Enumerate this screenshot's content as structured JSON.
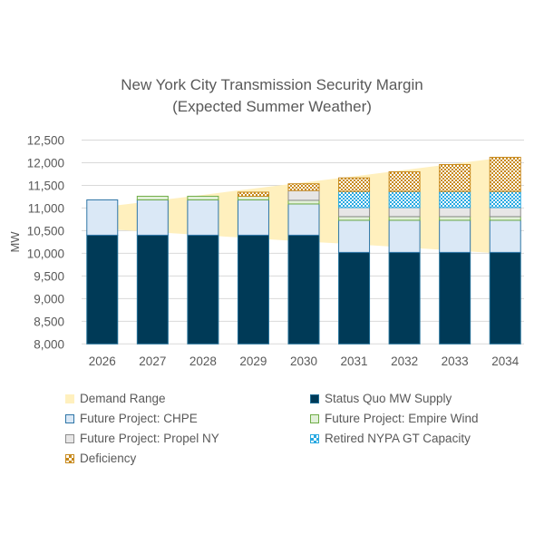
{
  "chart_data": {
    "type": "bar",
    "stacked": true,
    "title": "New York City Transmission Security Margin",
    "subtitle": "(Expected Summer Weather)",
    "xlabel": "",
    "ylabel": "MW",
    "ylim": [
      8000,
      12500
    ],
    "yticks": [
      8000,
      8500,
      9000,
      9500,
      10000,
      10500,
      11000,
      11500,
      12000,
      12500
    ],
    "ytick_labels": [
      "8,000",
      "8,500",
      "9,000",
      "9,500",
      "10,000",
      "10,500",
      "11,000",
      "11,500",
      "12,000",
      "12,500"
    ],
    "grid": true,
    "legend_position": "bottom",
    "categories": [
      "2026",
      "2027",
      "2028",
      "2029",
      "2030",
      "2031",
      "2032",
      "2033",
      "2034"
    ],
    "demand_range": {
      "name": "Demand Range",
      "color": "#FFF0BE",
      "lower": [
        10540,
        10470,
        10400,
        10330,
        10260,
        10200,
        10130,
        10060,
        9990
      ],
      "upper": [
        11020,
        11155,
        11290,
        11430,
        11565,
        11700,
        11840,
        11980,
        12120
      ]
    },
    "series": [
      {
        "name": "Status Quo MW Supply",
        "key": "sq",
        "fill": "#003A57",
        "stroke": "#1F6E96",
        "pattern": "solid",
        "values": [
          10400,
          10400,
          10400,
          10400,
          10400,
          10020,
          10020,
          10020,
          10020
        ]
      },
      {
        "name": "Future Project: CHPE",
        "key": "chpe",
        "fill": "#DAE8F6",
        "stroke": "#2E75A6",
        "pattern": "solid",
        "values": [
          780,
          780,
          780,
          780,
          690,
          710,
          710,
          710,
          710
        ]
      },
      {
        "name": "Future Project: Empire Wind",
        "key": "ew",
        "fill": "#E2F0D9",
        "stroke": "#70AD47",
        "pattern": "solid",
        "values": [
          0,
          80,
          80,
          80,
          80,
          80,
          80,
          80,
          80
        ]
      },
      {
        "name": "Future Project: Propel NY",
        "key": "propel",
        "fill": "#E7E6E6",
        "stroke": "#8C8C8C",
        "pattern": "solid",
        "values": [
          0,
          0,
          0,
          0,
          215,
          200,
          200,
          200,
          200
        ]
      },
      {
        "name": "Retired NYPA GT Capacity",
        "key": "nypa",
        "fill": "#29A9E1",
        "stroke": "#29A9E1",
        "pattern": "checker",
        "values": [
          0,
          0,
          0,
          0,
          0,
          355,
          355,
          355,
          355
        ]
      },
      {
        "name": "Deficiency",
        "key": "def",
        "fill": "#C88A1E",
        "stroke": "#C88A1E",
        "pattern": "checker",
        "values": [
          0,
          0,
          0,
          90,
          150,
          300,
          435,
          595,
          755
        ]
      }
    ],
    "legend": [
      {
        "label": "Demand Range",
        "key": "demand"
      },
      {
        "label": "Status Quo MW Supply",
        "key": "sq"
      },
      {
        "label": "Future Project: CHPE",
        "key": "chpe"
      },
      {
        "label": "Future Project: Empire Wind",
        "key": "ew"
      },
      {
        "label": "Future Project: Propel NY",
        "key": "propel"
      },
      {
        "label": "Retired NYPA GT Capacity",
        "key": "nypa"
      },
      {
        "label": "Deficiency",
        "key": "def"
      }
    ]
  }
}
